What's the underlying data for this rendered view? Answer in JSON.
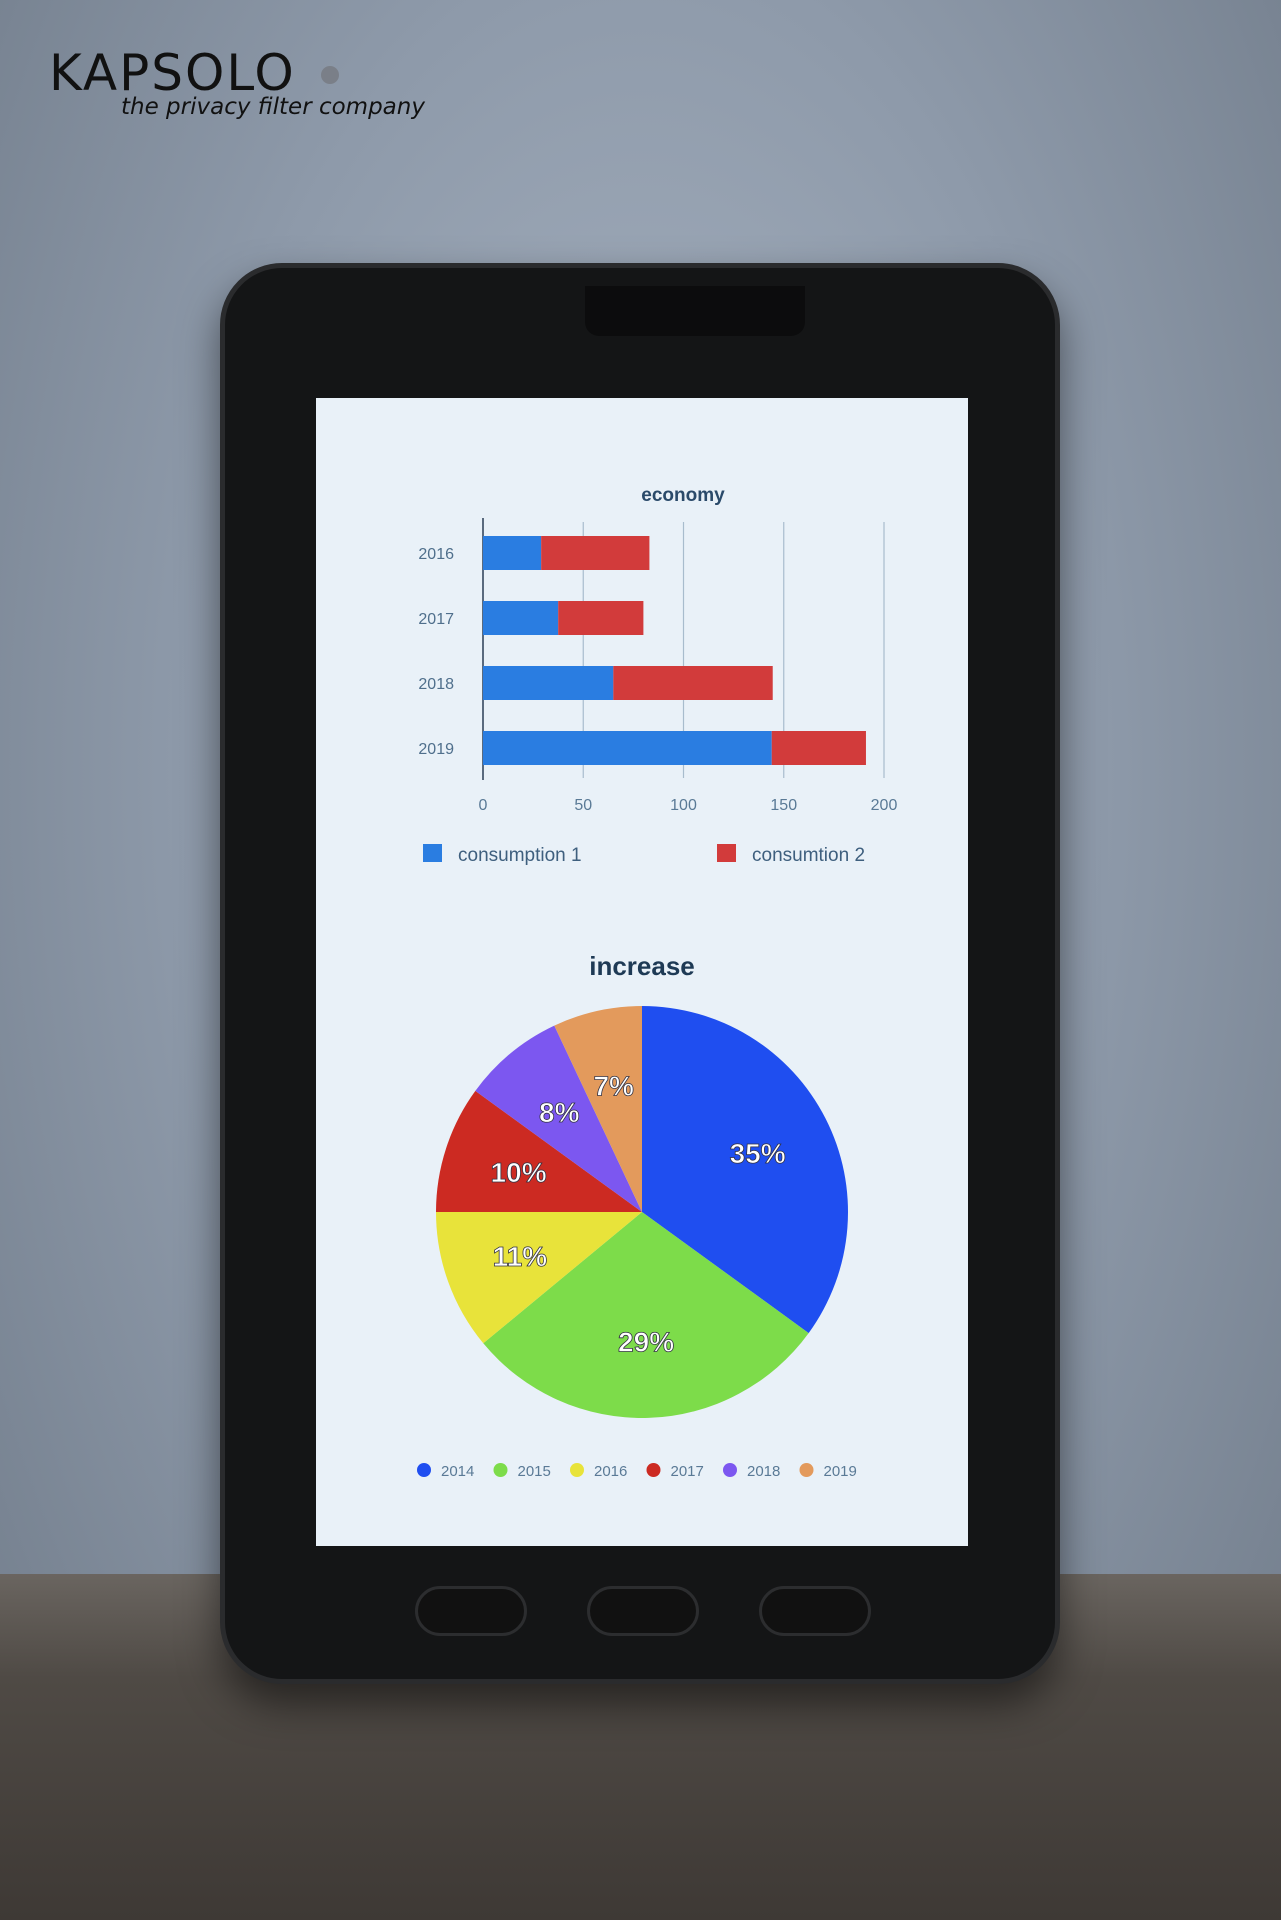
{
  "logo": {
    "brand": "KAPSOLO",
    "tagline": "the privacy filter company"
  },
  "chart_data": [
    {
      "type": "bar",
      "orientation": "horizontal",
      "stacked": true,
      "title": "economy",
      "categories": [
        "2016",
        "2017",
        "2018",
        "2019"
      ],
      "series": [
        {
          "name": "consumption  1",
          "color": "#2a7de1",
          "values": [
            29,
            37.5,
            65,
            144
          ]
        },
        {
          "name": "consumtion 2",
          "color": "#d23b3b",
          "values": [
            54,
            42.5,
            79.5,
            47
          ]
        }
      ],
      "xlim": [
        0,
        200
      ],
      "xticks": [
        "0",
        "50",
        "100",
        "150",
        "200"
      ],
      "grid": true,
      "legend": "bottom"
    },
    {
      "type": "pie",
      "title": "increase",
      "categories": [
        "2014",
        "2015",
        "2016",
        "2017",
        "2018",
        "2019"
      ],
      "values": [
        35,
        29,
        11,
        10,
        8,
        7
      ],
      "labels": [
        "35%",
        "29%",
        "11%",
        "10%",
        "8%",
        "7%"
      ],
      "colors": [
        "#1f4ef0",
        "#7ddc4a",
        "#e8e33a",
        "#cc2a22",
        "#7c57f0",
        "#e39a5c"
      ],
      "legend": "bottom"
    }
  ]
}
